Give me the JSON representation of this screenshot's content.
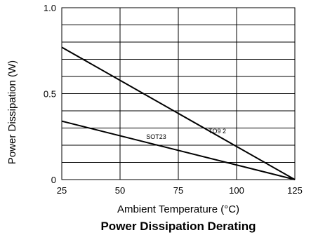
{
  "chart_data": {
    "type": "line",
    "title": "Power Dissipation Derating",
    "xlabel": "Ambient  Temperature (°C)",
    "ylabel": "Power Dissipation (W)",
    "xlim": [
      25,
      125
    ],
    "ylim": [
      0,
      1.0
    ],
    "x_ticks": [
      25,
      50,
      75,
      100,
      125
    ],
    "x_tick_labels": [
      "25",
      "50",
      "75",
      "100",
      "125"
    ],
    "y_ticks": [
      0,
      0.5,
      1.0
    ],
    "y_tick_labels": [
      "0",
      "0.5",
      "1.0"
    ],
    "grid": true,
    "grid_y_step": 0.1,
    "series": [
      {
        "name": "TO9 2",
        "x": [
          25,
          125
        ],
        "y": [
          0.77,
          0
        ]
      },
      {
        "name": "SOT23",
        "x": [
          25,
          125
        ],
        "y": [
          0.34,
          0
        ]
      }
    ]
  }
}
